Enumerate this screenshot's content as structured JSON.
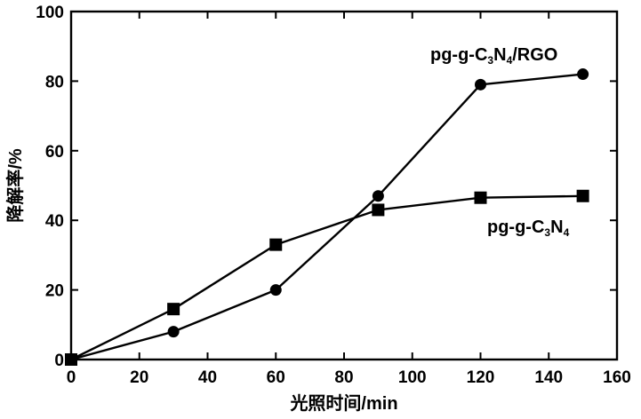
{
  "chart_data": {
    "type": "line",
    "title": "",
    "xlabel": "光照时间/min",
    "ylabel": "降解率/%",
    "xlim": [
      0,
      160
    ],
    "ylim": [
      0,
      100
    ],
    "xticks": [
      0,
      20,
      40,
      60,
      80,
      100,
      120,
      140,
      160
    ],
    "yticks": [
      0,
      20,
      40,
      60,
      80,
      100
    ],
    "grid": false,
    "series": [
      {
        "name": "pg-g-C3N4/RGO",
        "label_base": "pg-g-C",
        "label_sub1": "3",
        "label_mid": "N",
        "label_sub2": "4",
        "label_tail": "/RGO",
        "marker": "circle",
        "x": [
          0,
          30,
          60,
          90,
          120,
          150
        ],
        "y": [
          0,
          8,
          20,
          47,
          79,
          82
        ]
      },
      {
        "name": "pg-g-C3N4",
        "label_base": "pg-g-C",
        "label_sub1": "3",
        "label_mid": "N",
        "label_sub2": "4",
        "label_tail": "",
        "marker": "square",
        "x": [
          0,
          30,
          60,
          90,
          120,
          150
        ],
        "y": [
          0,
          14.5,
          33,
          43,
          46.5,
          47
        ]
      }
    ],
    "colors": {
      "line": "#000000",
      "marker": "#000000",
      "axis": "#000000"
    }
  }
}
